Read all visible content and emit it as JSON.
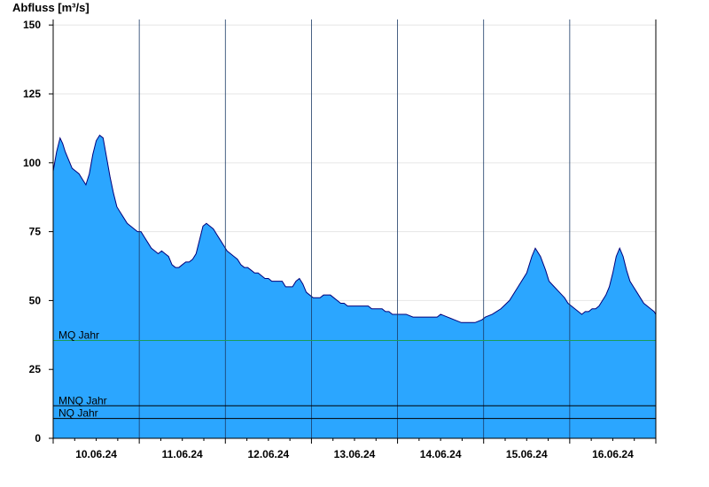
{
  "chart_data": {
    "type": "area",
    "ylabel": "Abfluss [m³/s]",
    "xlabel": "",
    "title": "",
    "ylim": [
      0,
      152
    ],
    "yticks": [
      "0",
      "25",
      "50",
      "75",
      "100",
      "125",
      "150"
    ],
    "ytick_values": [
      0,
      25,
      50,
      75,
      100,
      125,
      150
    ],
    "x_range_days": [
      0,
      7
    ],
    "day_ticks": [
      "10.06.24",
      "11.06.24",
      "12.06.24",
      "13.06.24",
      "14.06.24",
      "15.06.24",
      "16.06.24"
    ],
    "fill_color": "#2ba6ff",
    "line_color": "#00007a",
    "series": [
      {
        "x": [
          0,
          0.04,
          0.08,
          0.11,
          0.14,
          0.18,
          0.22,
          0.26,
          0.3,
          0.34,
          0.38,
          0.42,
          0.46,
          0.5,
          0.54,
          0.58,
          0.62,
          0.66,
          0.7,
          0.74,
          0.78,
          0.82,
          0.86,
          0.9,
          0.94,
          0.98,
          1.02,
          1.06,
          1.1,
          1.14,
          1.18,
          1.22,
          1.26,
          1.3,
          1.34,
          1.38,
          1.42,
          1.46,
          1.5,
          1.54,
          1.58,
          1.62,
          1.66,
          1.7,
          1.74,
          1.78,
          1.82,
          1.86,
          1.9,
          1.94,
          1.98,
          2.02,
          2.06,
          2.1,
          2.14,
          2.18,
          2.22,
          2.26,
          2.3,
          2.34,
          2.38,
          2.42,
          2.46,
          2.5,
          2.54,
          2.58,
          2.62,
          2.66,
          2.7,
          2.74,
          2.78,
          2.82,
          2.86,
          2.9,
          2.94,
          2.98,
          3.02,
          3.06,
          3.1,
          3.14,
          3.18,
          3.22,
          3.26,
          3.3,
          3.34,
          3.38,
          3.42,
          3.46,
          3.5,
          3.54,
          3.58,
          3.62,
          3.66,
          3.7,
          3.74,
          3.78,
          3.82,
          3.86,
          3.9,
          3.94,
          3.98,
          4.02,
          4.1,
          4.18,
          4.22,
          4.3,
          4.4,
          4.46,
          4.5,
          4.58,
          4.66,
          4.74,
          4.82,
          4.9,
          4.98,
          5.02,
          5.1,
          5.2,
          5.3,
          5.4,
          5.5,
          5.56,
          5.6,
          5.66,
          5.72,
          5.76,
          5.82,
          5.88,
          5.94,
          5.98,
          6.02,
          6.06,
          6.1,
          6.14,
          6.18,
          6.22,
          6.26,
          6.3,
          6.34,
          6.38,
          6.42,
          6.46,
          6.5,
          6.54,
          6.58,
          6.62,
          6.66,
          6.7,
          6.74,
          6.78,
          6.82,
          6.86,
          6.9,
          6.94,
          6.98,
          7.0
        ],
        "values": [
          97,
          104,
          109,
          107,
          104,
          101,
          98,
          97,
          96,
          94,
          92,
          96,
          103,
          108,
          110,
          109,
          102,
          95,
          89,
          84,
          82,
          80,
          78,
          77,
          76,
          75,
          75,
          73,
          71,
          69,
          68,
          67,
          68,
          67,
          66,
          63,
          62,
          62,
          63,
          64,
          64,
          65,
          67,
          72,
          77,
          78,
          77,
          76,
          74,
          72,
          70,
          68,
          67,
          66,
          65,
          63,
          62,
          62,
          61,
          60,
          60,
          59,
          58,
          58,
          57,
          57,
          57,
          57,
          55,
          55,
          55,
          57,
          58,
          56,
          53,
          52,
          51,
          51,
          51,
          52,
          52,
          52,
          51,
          50,
          49,
          49,
          48,
          48,
          48,
          48,
          48,
          48,
          48,
          47,
          47,
          47,
          47,
          46,
          46,
          45,
          45,
          45,
          45,
          44,
          44,
          44,
          44,
          44,
          45,
          44,
          43,
          42,
          42,
          42,
          43,
          44,
          45,
          47,
          50,
          55,
          60,
          66,
          69,
          66,
          61,
          57,
          55,
          53,
          51,
          49,
          48,
          47,
          46,
          45,
          46,
          46,
          47,
          47,
          48,
          50,
          52,
          55,
          60,
          66,
          69,
          66,
          61,
          57,
          55,
          53,
          51,
          49,
          48,
          47,
          46,
          45
        ]
      }
    ],
    "reference_lines": [
      {
        "label": "MQ Jahr",
        "value": 35.5,
        "color": "#1a9c5a"
      },
      {
        "label": "MNQ Jahr",
        "value": 11.8,
        "color": "#000000"
      },
      {
        "label": "NQ Jahr",
        "value": 7.2,
        "color": "#000000"
      }
    ],
    "grid": true
  }
}
